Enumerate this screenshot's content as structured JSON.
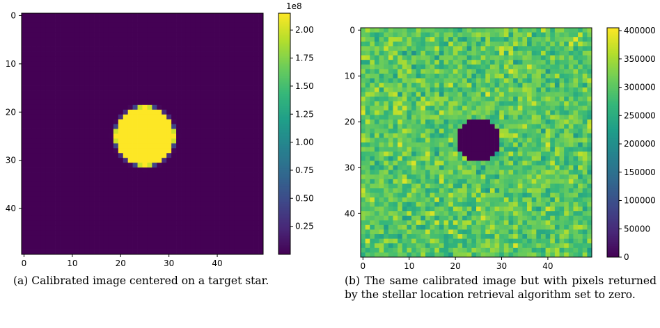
{
  "chart_data": [
    {
      "type": "heatmap",
      "title": "",
      "xlabel": "",
      "ylabel": "",
      "grid": false,
      "image_size": [
        50,
        50
      ],
      "x_ticks": [
        0,
        10,
        20,
        30,
        40
      ],
      "y_ticks": [
        0,
        10,
        20,
        30,
        40
      ],
      "xlim": [
        -0.5,
        49.5
      ],
      "ylim": [
        49.5,
        -0.5
      ],
      "colormap": "viridis",
      "colorbar": {
        "range": [
          0,
          2.15
        ],
        "ticks": [
          0.25,
          0.5,
          0.75,
          1.0,
          1.25,
          1.5,
          1.75,
          2.0
        ],
        "tick_labels": [
          "0.25",
          "0.50",
          "0.75",
          "1.00",
          "1.25",
          "1.50",
          "1.75",
          "2.00"
        ],
        "offset_label": "1e8"
      },
      "star": {
        "center_x": 25,
        "center_y": 25,
        "peak": 215000000.0,
        "sigma": 1.0
      },
      "background_value": 0,
      "caption": "(a) Calibrated image centered on a target star."
    },
    {
      "type": "heatmap",
      "title": "",
      "xlabel": "",
      "ylabel": "",
      "grid": false,
      "image_size": [
        50,
        50
      ],
      "x_ticks": [
        0,
        10,
        20,
        30,
        40
      ],
      "y_ticks": [
        0,
        10,
        20,
        30,
        40
      ],
      "xlim": [
        -0.5,
        49.5
      ],
      "ylim": [
        49.5,
        -0.5
      ],
      "colormap": "viridis",
      "colorbar": {
        "range": [
          0,
          405000
        ],
        "ticks": [
          0,
          50000,
          100000,
          150000,
          200000,
          250000,
          300000,
          350000,
          400000
        ],
        "tick_labels": [
          "0",
          "50000",
          "100000",
          "150000",
          "200000",
          "250000",
          "300000",
          "350000",
          "400000"
        ]
      },
      "background_mean": 300000,
      "background_spread": 50000,
      "zeroed_region": {
        "center_x": 25,
        "center_y": 24,
        "radius": 4.6,
        "value": 0
      },
      "caption": "(b) The same calibrated image but with pixels returned by the stellar location retrieval algorithm set to zero."
    }
  ]
}
